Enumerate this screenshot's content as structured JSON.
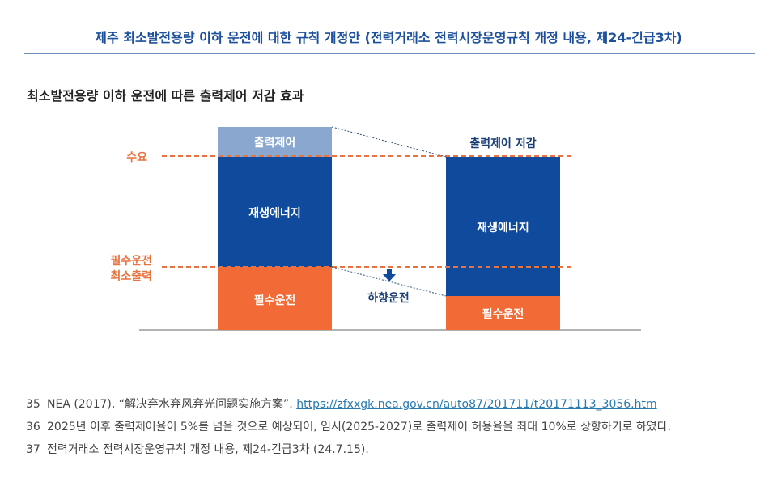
{
  "header": {
    "title": "제주 최소발전용량 이하 운전에 대한 규칙 개정안 (전력거래소 전력시장운영규칙 개정 내용, 제24-긴급3차)"
  },
  "section": {
    "subtitle": "최소발전용량 이하 운전에 따른 출력제어 저감 효과"
  },
  "diagram": {
    "demand_label": "수요",
    "min_output_label_1": "필수운전",
    "min_output_label_2": "최소출력",
    "left_bar": {
      "curtail": "출력제어",
      "renewable": "재생에너지",
      "must_run": "필수운전"
    },
    "right_bar": {
      "top_label": "출력제어 저감",
      "renewable": "재생에너지",
      "must_run": "필수운전"
    },
    "arrow_label": "하향운전",
    "colors": {
      "curtail": "#8aa7d0",
      "renewable": "#0f4a9c",
      "must_run": "#f26a35",
      "dashed": "#e8733e"
    }
  },
  "footnotes": [
    {
      "num": "35",
      "text": "NEA (2017), “解决弃水弃风弃光问题实施方案”. ",
      "link": "https://zfxxgk.nea.gov.cn/auto87/201711/t20171113_3056.htm"
    },
    {
      "num": "36",
      "text": "2025년 이후 출력제어율이 5%를 넘을 것으로 예상되어, 임시(2025-2027)로 출력제어 허용율을 최대 10%로 상향하기로 하였다."
    },
    {
      "num": "37",
      "text": "전력거래소 전력시장운영규칙 개정 내용, 제24-긴급3차 (24.7.15)."
    }
  ]
}
